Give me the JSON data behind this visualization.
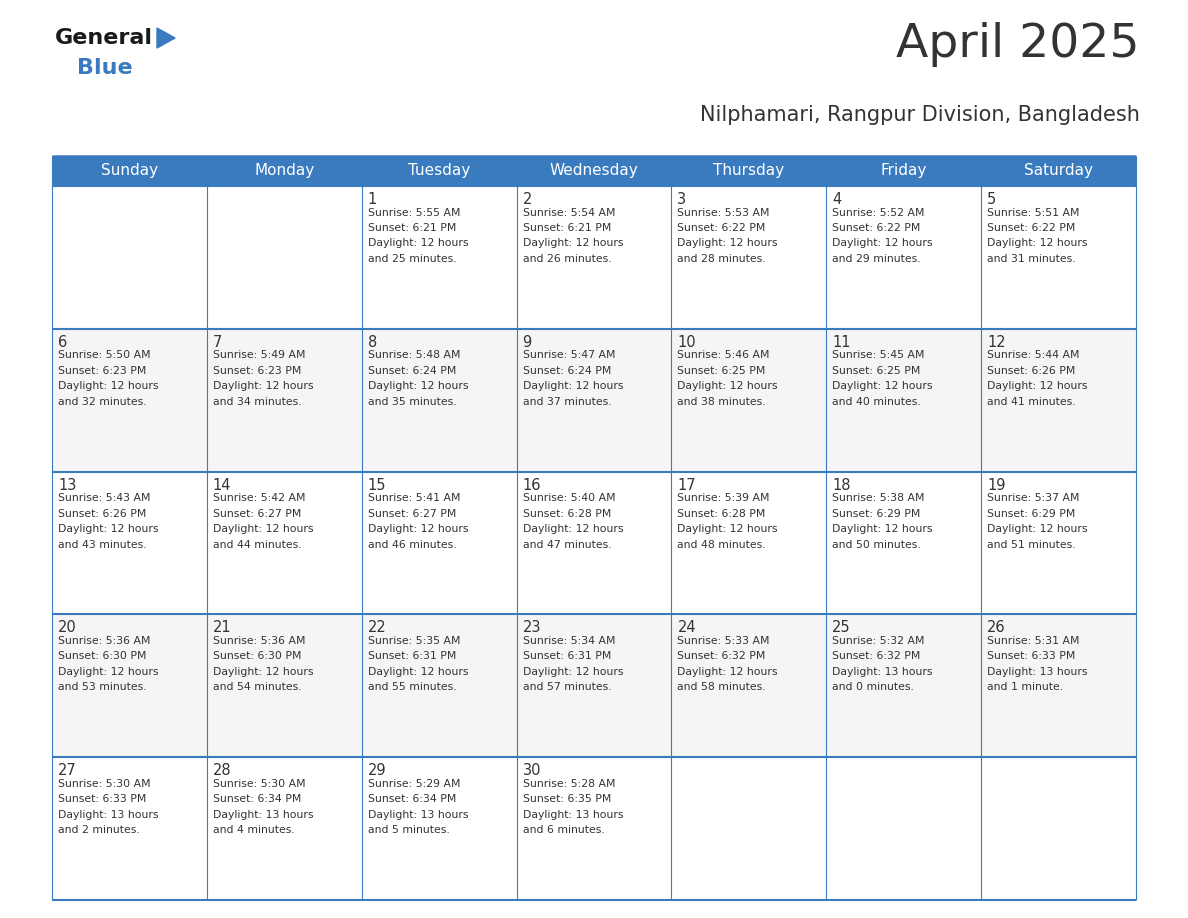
{
  "title": "April 2025",
  "subtitle": "Nilphamari, Rangpur Division, Bangladesh",
  "header_color": "#3a7bbf",
  "header_text_color": "#ffffff",
  "border_color": "#3a7bbf",
  "text_color": "#333333",
  "days_of_week": [
    "Sunday",
    "Monday",
    "Tuesday",
    "Wednesday",
    "Thursday",
    "Friday",
    "Saturday"
  ],
  "calendar_data": [
    [
      {
        "day": "",
        "sunrise": "",
        "sunset": "",
        "daylight": ""
      },
      {
        "day": "",
        "sunrise": "",
        "sunset": "",
        "daylight": ""
      },
      {
        "day": "1",
        "sunrise": "5:55 AM",
        "sunset": "6:21 PM",
        "daylight": "12 hours\nand 25 minutes."
      },
      {
        "day": "2",
        "sunrise": "5:54 AM",
        "sunset": "6:21 PM",
        "daylight": "12 hours\nand 26 minutes."
      },
      {
        "day": "3",
        "sunrise": "5:53 AM",
        "sunset": "6:22 PM",
        "daylight": "12 hours\nand 28 minutes."
      },
      {
        "day": "4",
        "sunrise": "5:52 AM",
        "sunset": "6:22 PM",
        "daylight": "12 hours\nand 29 minutes."
      },
      {
        "day": "5",
        "sunrise": "5:51 AM",
        "sunset": "6:22 PM",
        "daylight": "12 hours\nand 31 minutes."
      }
    ],
    [
      {
        "day": "6",
        "sunrise": "5:50 AM",
        "sunset": "6:23 PM",
        "daylight": "12 hours\nand 32 minutes."
      },
      {
        "day": "7",
        "sunrise": "5:49 AM",
        "sunset": "6:23 PM",
        "daylight": "12 hours\nand 34 minutes."
      },
      {
        "day": "8",
        "sunrise": "5:48 AM",
        "sunset": "6:24 PM",
        "daylight": "12 hours\nand 35 minutes."
      },
      {
        "day": "9",
        "sunrise": "5:47 AM",
        "sunset": "6:24 PM",
        "daylight": "12 hours\nand 37 minutes."
      },
      {
        "day": "10",
        "sunrise": "5:46 AM",
        "sunset": "6:25 PM",
        "daylight": "12 hours\nand 38 minutes."
      },
      {
        "day": "11",
        "sunrise": "5:45 AM",
        "sunset": "6:25 PM",
        "daylight": "12 hours\nand 40 minutes."
      },
      {
        "day": "12",
        "sunrise": "5:44 AM",
        "sunset": "6:26 PM",
        "daylight": "12 hours\nand 41 minutes."
      }
    ],
    [
      {
        "day": "13",
        "sunrise": "5:43 AM",
        "sunset": "6:26 PM",
        "daylight": "12 hours\nand 43 minutes."
      },
      {
        "day": "14",
        "sunrise": "5:42 AM",
        "sunset": "6:27 PM",
        "daylight": "12 hours\nand 44 minutes."
      },
      {
        "day": "15",
        "sunrise": "5:41 AM",
        "sunset": "6:27 PM",
        "daylight": "12 hours\nand 46 minutes."
      },
      {
        "day": "16",
        "sunrise": "5:40 AM",
        "sunset": "6:28 PM",
        "daylight": "12 hours\nand 47 minutes."
      },
      {
        "day": "17",
        "sunrise": "5:39 AM",
        "sunset": "6:28 PM",
        "daylight": "12 hours\nand 48 minutes."
      },
      {
        "day": "18",
        "sunrise": "5:38 AM",
        "sunset": "6:29 PM",
        "daylight": "12 hours\nand 50 minutes."
      },
      {
        "day": "19",
        "sunrise": "5:37 AM",
        "sunset": "6:29 PM",
        "daylight": "12 hours\nand 51 minutes."
      }
    ],
    [
      {
        "day": "20",
        "sunrise": "5:36 AM",
        "sunset": "6:30 PM",
        "daylight": "12 hours\nand 53 minutes."
      },
      {
        "day": "21",
        "sunrise": "5:36 AM",
        "sunset": "6:30 PM",
        "daylight": "12 hours\nand 54 minutes."
      },
      {
        "day": "22",
        "sunrise": "5:35 AM",
        "sunset": "6:31 PM",
        "daylight": "12 hours\nand 55 minutes."
      },
      {
        "day": "23",
        "sunrise": "5:34 AM",
        "sunset": "6:31 PM",
        "daylight": "12 hours\nand 57 minutes."
      },
      {
        "day": "24",
        "sunrise": "5:33 AM",
        "sunset": "6:32 PM",
        "daylight": "12 hours\nand 58 minutes."
      },
      {
        "day": "25",
        "sunrise": "5:32 AM",
        "sunset": "6:32 PM",
        "daylight": "13 hours\nand 0 minutes."
      },
      {
        "day": "26",
        "sunrise": "5:31 AM",
        "sunset": "6:33 PM",
        "daylight": "13 hours\nand 1 minute."
      }
    ],
    [
      {
        "day": "27",
        "sunrise": "5:30 AM",
        "sunset": "6:33 PM",
        "daylight": "13 hours\nand 2 minutes."
      },
      {
        "day": "28",
        "sunrise": "5:30 AM",
        "sunset": "6:34 PM",
        "daylight": "13 hours\nand 4 minutes."
      },
      {
        "day": "29",
        "sunrise": "5:29 AM",
        "sunset": "6:34 PM",
        "daylight": "13 hours\nand 5 minutes."
      },
      {
        "day": "30",
        "sunrise": "5:28 AM",
        "sunset": "6:35 PM",
        "daylight": "13 hours\nand 6 minutes."
      },
      {
        "day": "",
        "sunrise": "",
        "sunset": "",
        "daylight": ""
      },
      {
        "day": "",
        "sunrise": "",
        "sunset": "",
        "daylight": ""
      },
      {
        "day": "",
        "sunrise": "",
        "sunset": "",
        "daylight": ""
      }
    ]
  ],
  "logo_color_general": "#1a1a1a",
  "logo_color_blue": "#3a7bbf",
  "logo_triangle_color": "#3a7bbf",
  "fig_width": 11.88,
  "fig_height": 9.18,
  "dpi": 100
}
